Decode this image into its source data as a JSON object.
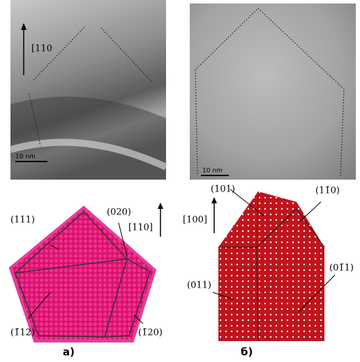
{
  "tem_images": [
    {
      "direction": "[110",
      "scale_bar": "10 nm"
    },
    {
      "scale_bar": "10 nm"
    }
  ],
  "models": [
    {
      "facets": [
        "(111)",
        "(020)",
        "(1̄12)",
        "(1̄20)"
      ],
      "direction": "[110]",
      "caption": "а)"
    },
    {
      "facets": [
        "(101)",
        "(11̄0)",
        "(011)",
        "(01̄1)"
      ],
      "direction": "[100]",
      "caption": "б)"
    }
  ]
}
